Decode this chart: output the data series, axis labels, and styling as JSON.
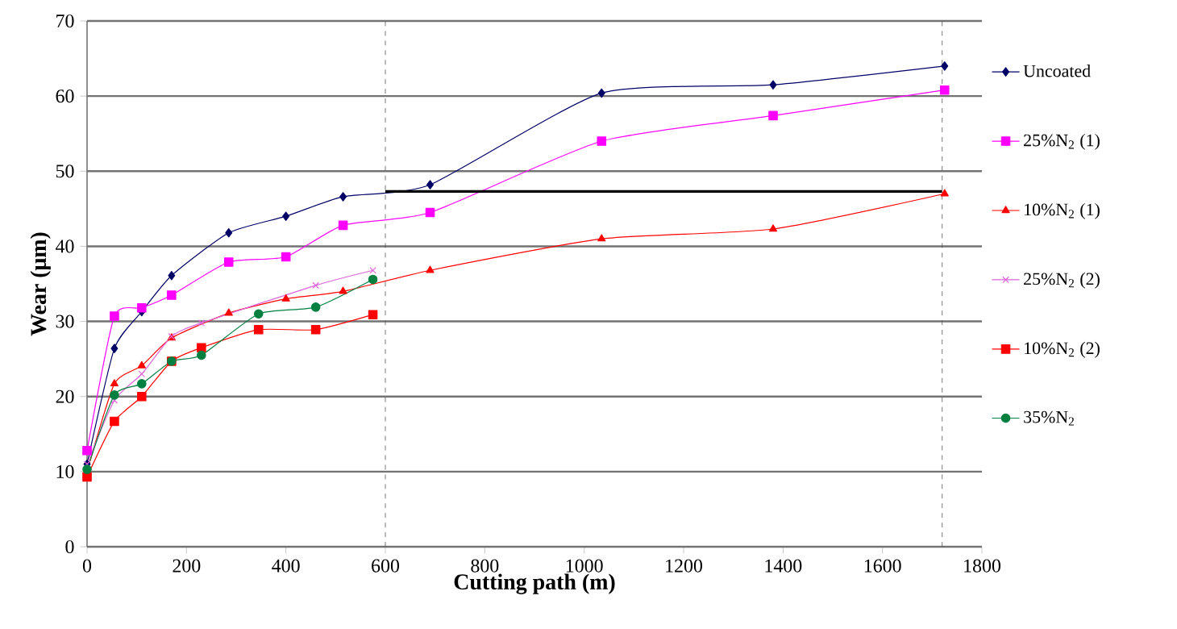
{
  "chart_data": {
    "type": "line",
    "xlabel": "Cutting path (m)",
    "ylabel": "Wear (μm)",
    "xlim": [
      0,
      1800
    ],
    "xticks": [
      0,
      200,
      400,
      600,
      800,
      1000,
      1200,
      1400,
      1600,
      1800
    ],
    "ylim": [
      0,
      70
    ],
    "yticks": [
      0,
      10,
      20,
      30,
      40,
      50,
      60,
      70
    ],
    "grid": "y",
    "legend": "right",
    "series": [
      {
        "name": "Uncoated",
        "color": "#000066",
        "marker": "diamond",
        "x": [
          0,
          55,
          110,
          170,
          285,
          400,
          515,
          690,
          1035,
          1380,
          1725
        ],
        "values": [
          11,
          26.4,
          31.3,
          36.1,
          41.8,
          44,
          46.6,
          48.2,
          60.4,
          61.5,
          64
        ]
      },
      {
        "name": "25%N$_{2}$ (1)",
        "color": "#ff00ff",
        "marker": "square",
        "x": [
          0,
          55,
          110,
          170,
          285,
          400,
          515,
          690,
          1035,
          1380,
          1725
        ],
        "values": [
          12.8,
          30.7,
          31.8,
          33.5,
          37.9,
          38.6,
          42.8,
          44.5,
          54,
          57.4,
          60.8
        ]
      },
      {
        "name": "10%N$_{2}$ (1)",
        "color": "#ff0000",
        "marker": "triangle",
        "x": [
          0,
          55,
          110,
          170,
          285,
          400,
          515,
          690,
          1035,
          1380,
          1725
        ],
        "values": [
          10,
          21.7,
          24.1,
          27.8,
          31.1,
          33,
          34,
          36.8,
          41,
          42.3,
          47
        ]
      },
      {
        "name": "25%N$_{2}$ (2)",
        "color": "#dd66dd",
        "marker": "cross",
        "x": [
          0,
          55,
          110,
          170,
          230,
          345,
          460,
          575
        ],
        "values": [
          11,
          19.5,
          23,
          28,
          29.8,
          null,
          34.8,
          36.8
        ]
      },
      {
        "name": "10%N$_{2}$ (2)",
        "color": "#ff0000",
        "marker": "square",
        "x": [
          0,
          55,
          110,
          170,
          230,
          345,
          460,
          575
        ],
        "values": [
          9.3,
          16.7,
          20,
          24.7,
          26.5,
          28.9,
          28.9,
          30.9
        ]
      },
      {
        "name": "35%N$_{2}$",
        "color": "#008040",
        "marker": "circle",
        "x": [
          0,
          55,
          110,
          170,
          230,
          345,
          460,
          575
        ],
        "values": [
          10.3,
          20.2,
          21.7,
          24.7,
          25.5,
          31,
          31.9,
          35.6
        ]
      },
      {
        "color": "#000000",
        "marker": "none",
        "x": [
          600,
          1720
        ],
        "values": [
          47.3,
          47.3
        ]
      }
    ],
    "ref_lines": [
      {
        "axis": "x",
        "value": 600,
        "line_style": "dashed",
        "color": "#555555"
      },
      {
        "axis": "x",
        "value": 1720,
        "line_style": "dashed",
        "color": "#555555"
      }
    ]
  }
}
